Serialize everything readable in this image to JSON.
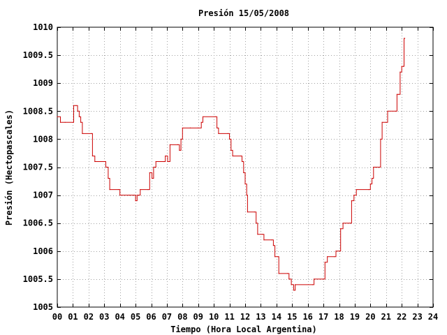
{
  "chart_data": {
    "type": "line",
    "title": "Presión 15/05/2008",
    "xlabel": "Tiempo (Hora Local Argentina)",
    "ylabel": "Presión (Hectopascales)",
    "xlim": [
      0,
      24
    ],
    "ylim": [
      1005,
      1010
    ],
    "x_ticks": [
      0,
      1,
      2,
      3,
      4,
      5,
      6,
      7,
      8,
      9,
      10,
      11,
      12,
      13,
      14,
      15,
      16,
      17,
      18,
      19,
      20,
      21,
      22,
      23,
      24
    ],
    "x_tick_labels": [
      "00",
      "01",
      "02",
      "03",
      "04",
      "05",
      "06",
      "07",
      "08",
      "09",
      "10",
      "11",
      "12",
      "13",
      "14",
      "15",
      "16",
      "17",
      "18",
      "19",
      "20",
      "21",
      "22",
      "23",
      "24"
    ],
    "y_ticks": [
      1005,
      1005.5,
      1006,
      1006.5,
      1007,
      1007.5,
      1008,
      1008.5,
      1009,
      1009.5,
      1010
    ],
    "y_tick_labels": [
      "1005",
      "1005.5",
      "1006",
      "1006.5",
      "1007",
      "1007.5",
      "1008",
      "1008.5",
      "1009",
      "1009.5",
      "1010"
    ],
    "grid": true,
    "line_style": "step",
    "series": [
      {
        "color": "#cc0000",
        "points": [
          [
            0.0,
            1008.4
          ],
          [
            0.2,
            1008.3
          ],
          [
            0.5,
            1008.3
          ],
          [
            1.0,
            1008.3
          ],
          [
            1.05,
            1008.6
          ],
          [
            1.2,
            1008.6
          ],
          [
            1.3,
            1008.5
          ],
          [
            1.4,
            1008.4
          ],
          [
            1.5,
            1008.3
          ],
          [
            1.6,
            1008.1
          ],
          [
            2.2,
            1008.1
          ],
          [
            2.25,
            1007.7
          ],
          [
            2.4,
            1007.6
          ],
          [
            3.0,
            1007.6
          ],
          [
            3.1,
            1007.5
          ],
          [
            3.25,
            1007.3
          ],
          [
            3.35,
            1007.1
          ],
          [
            3.9,
            1007.1
          ],
          [
            4.0,
            1007.0
          ],
          [
            4.6,
            1007.0
          ],
          [
            4.9,
            1007.0
          ],
          [
            5.0,
            1006.9
          ],
          [
            5.1,
            1007.0
          ],
          [
            5.2,
            1007.0
          ],
          [
            5.3,
            1007.1
          ],
          [
            5.8,
            1007.1
          ],
          [
            5.9,
            1007.4
          ],
          [
            6.05,
            1007.3
          ],
          [
            6.15,
            1007.5
          ],
          [
            6.3,
            1007.6
          ],
          [
            6.8,
            1007.6
          ],
          [
            6.9,
            1007.7
          ],
          [
            7.05,
            1007.6
          ],
          [
            7.2,
            1007.9
          ],
          [
            7.7,
            1007.9
          ],
          [
            7.8,
            1007.8
          ],
          [
            7.9,
            1008.0
          ],
          [
            8.0,
            1008.2
          ],
          [
            8.5,
            1008.2
          ],
          [
            9.0,
            1008.2
          ],
          [
            9.2,
            1008.3
          ],
          [
            9.3,
            1008.4
          ],
          [
            10.1,
            1008.4
          ],
          [
            10.2,
            1008.2
          ],
          [
            10.3,
            1008.1
          ],
          [
            10.9,
            1008.1
          ],
          [
            11.0,
            1008.0
          ],
          [
            11.1,
            1007.8
          ],
          [
            11.2,
            1007.7
          ],
          [
            11.7,
            1007.7
          ],
          [
            11.8,
            1007.6
          ],
          [
            11.9,
            1007.4
          ],
          [
            12.0,
            1007.2
          ],
          [
            12.1,
            1007.0
          ],
          [
            12.15,
            1006.7
          ],
          [
            12.6,
            1006.7
          ],
          [
            12.7,
            1006.5
          ],
          [
            12.8,
            1006.3
          ],
          [
            13.1,
            1006.3
          ],
          [
            13.2,
            1006.2
          ],
          [
            13.7,
            1006.2
          ],
          [
            13.8,
            1006.1
          ],
          [
            13.9,
            1005.9
          ],
          [
            14.1,
            1005.9
          ],
          [
            14.15,
            1005.6
          ],
          [
            14.7,
            1005.6
          ],
          [
            14.8,
            1005.5
          ],
          [
            14.95,
            1005.4
          ],
          [
            15.1,
            1005.3
          ],
          [
            15.2,
            1005.4
          ],
          [
            16.3,
            1005.4
          ],
          [
            16.4,
            1005.5
          ],
          [
            17.0,
            1005.5
          ],
          [
            17.1,
            1005.8
          ],
          [
            17.25,
            1005.9
          ],
          [
            17.7,
            1005.9
          ],
          [
            17.8,
            1006.0
          ],
          [
            18.0,
            1006.0
          ],
          [
            18.1,
            1006.4
          ],
          [
            18.25,
            1006.5
          ],
          [
            18.7,
            1006.5
          ],
          [
            18.8,
            1006.9
          ],
          [
            18.95,
            1007.0
          ],
          [
            19.1,
            1007.1
          ],
          [
            19.9,
            1007.1
          ],
          [
            20.0,
            1007.2
          ],
          [
            20.1,
            1007.3
          ],
          [
            20.2,
            1007.5
          ],
          [
            20.6,
            1007.5
          ],
          [
            20.65,
            1008.0
          ],
          [
            20.75,
            1008.3
          ],
          [
            21.0,
            1008.3
          ],
          [
            21.1,
            1008.5
          ],
          [
            21.6,
            1008.5
          ],
          [
            21.7,
            1008.8
          ],
          [
            21.8,
            1008.8
          ],
          [
            21.9,
            1009.2
          ],
          [
            22.0,
            1009.3
          ],
          [
            22.1,
            1009.3
          ],
          [
            22.15,
            1009.8
          ],
          [
            22.2,
            1009.8
          ]
        ]
      }
    ]
  }
}
